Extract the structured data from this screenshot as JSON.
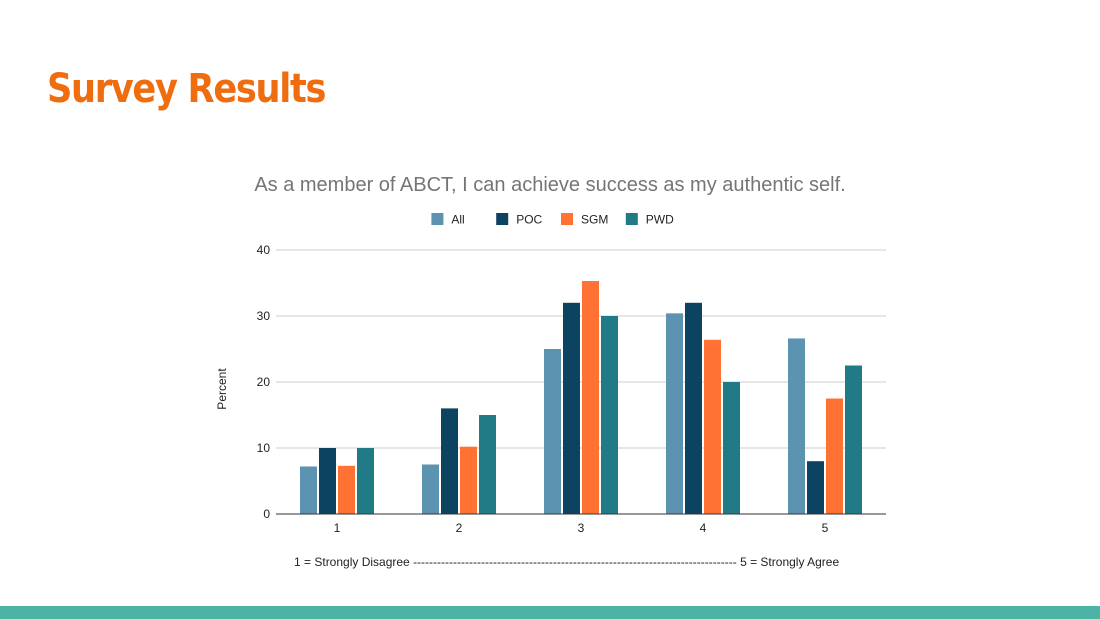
{
  "slide": {
    "title": "Survey Results",
    "scale_note": "1 = Strongly Disagree --------------------------------------------------------------------------------- 5 = Strongly Agree"
  },
  "colors": {
    "title": "#ef6c0f",
    "footer_bar": "#4db3a4",
    "gridline": "#cccccc",
    "axis": "#333333"
  },
  "chart_data": {
    "type": "bar",
    "title": "As a member of ABCT, I can achieve success as my authentic self.",
    "xlabel": "",
    "ylabel": "Percent",
    "categories": [
      "1",
      "2",
      "3",
      "4",
      "5"
    ],
    "ylim": [
      0,
      40
    ],
    "yticks": [
      0,
      10,
      20,
      30,
      40
    ],
    "grid": true,
    "legend_position": "top",
    "series": [
      {
        "name": "All",
        "color": "#5b93b0",
        "values": [
          7.2,
          7.5,
          25.0,
          30.4,
          26.6
        ]
      },
      {
        "name": "POC",
        "color": "#0b4360",
        "values": [
          10.0,
          16.0,
          32.0,
          32.0,
          8.0
        ]
      },
      {
        "name": "SGM",
        "color": "#ff7233",
        "values": [
          7.3,
          10.2,
          35.3,
          26.4,
          17.5
        ]
      },
      {
        "name": "PWD",
        "color": "#217b86",
        "values": [
          10.0,
          15.0,
          30.0,
          20.0,
          22.5
        ]
      }
    ]
  }
}
